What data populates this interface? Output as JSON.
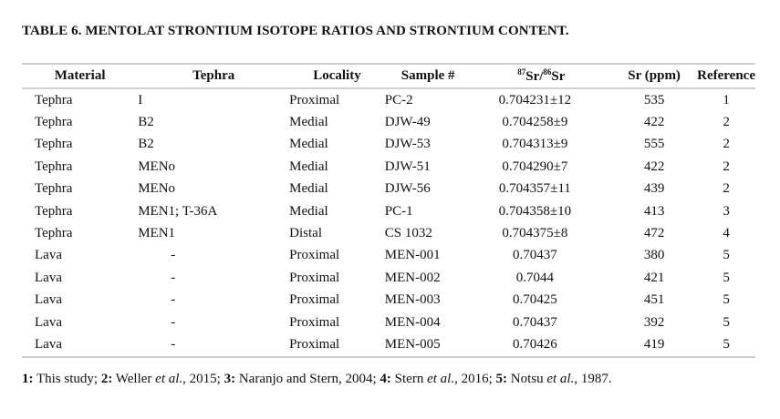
{
  "title": "TABLE 6. MENTOLAT STRONTIUM ISOTOPE RATIOS AND STRONTIUM CONTENT.",
  "headers": {
    "material": "Material",
    "tephra": "Tephra",
    "locality": "Locality",
    "sample": "Sample #",
    "ratio_sup1": "87",
    "ratio_a": "Sr/",
    "ratio_sup2": "86",
    "ratio_b": "Sr",
    "sr": "Sr (ppm)",
    "reference": "Reference"
  },
  "rows": [
    [
      "Tephra",
      "I",
      "Proximal",
      "PC-2",
      "0.704231±12",
      "535",
      "1"
    ],
    [
      "Tephra",
      "B2",
      "Medial",
      "DJW-49",
      "0.704258±9",
      "422",
      "2"
    ],
    [
      "Tephra",
      "B2",
      "Medial",
      "DJW-53",
      "0.704313±9",
      "555",
      "2"
    ],
    [
      "Tephra",
      "MENo",
      "Medial",
      "DJW-51",
      "0.704290±7",
      "422",
      "2"
    ],
    [
      "Tephra",
      "MENo",
      "Medial",
      "DJW-56",
      "0.704357±11",
      "439",
      "2"
    ],
    [
      "Tephra",
      "MEN1; T-36A",
      "Medial",
      "PC-1",
      "0.704358±10",
      "413",
      "3"
    ],
    [
      "Tephra",
      "MEN1",
      "Distal",
      "CS 1032",
      "0.704375±8",
      "472",
      "4"
    ],
    [
      "Lava",
      "-",
      "Proximal",
      "MEN-001",
      "0.70437",
      "380",
      "5"
    ],
    [
      "Lava",
      "-",
      "Proximal",
      "MEN-002",
      "0.7044",
      "421",
      "5"
    ],
    [
      "Lava",
      "-",
      "Proximal",
      "MEN-003",
      "0.70425",
      "451",
      "5"
    ],
    [
      "Lava",
      "-",
      "Proximal",
      "MEN-004",
      "0.70437",
      "392",
      "5"
    ],
    [
      "Lava",
      "-",
      "Proximal",
      "MEN-005",
      "0.70426",
      "419",
      "5"
    ]
  ],
  "footnote": {
    "n1": "1:",
    "t1": " This study; ",
    "n2": "2:",
    "t2": " Weller ",
    "e2": "et al.",
    "t2b": ", 2015; ",
    "n3": "3:",
    "t3": " Naranjo and Stern, 2004; ",
    "n4": "4:",
    "t4": " Stern ",
    "e4": "et al.",
    "t4b": ", 2016; ",
    "n5": "5:",
    "t5": " Notsu ",
    "e5": "et al.",
    "t5b": ", 1987."
  }
}
